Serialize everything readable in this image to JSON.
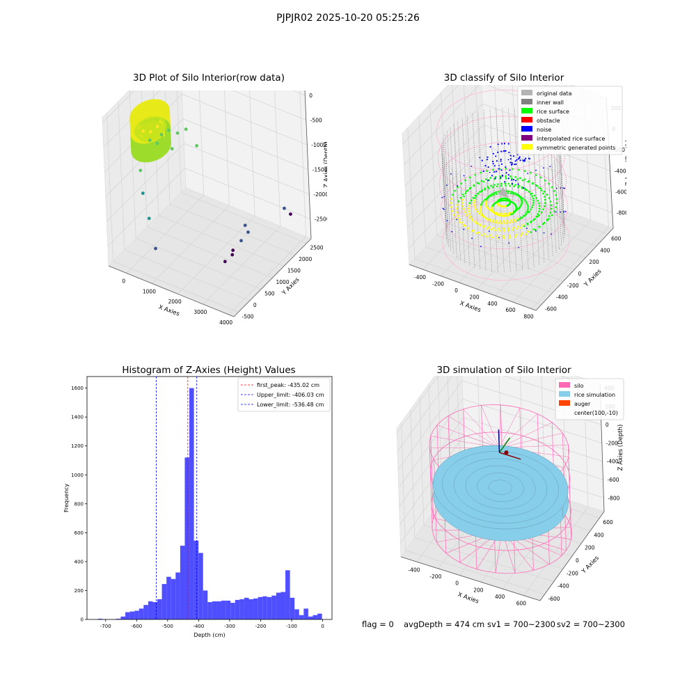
{
  "figure": {
    "suptitle": "PJPJR02 2025-10-20 05:25:26",
    "footer": {
      "flag": "flag = 0",
      "avg_depth": "avgDepth = 474 cm",
      "sv1": "sv1 = 700~2300",
      "sv2": "sv2 = 700~2300"
    }
  },
  "colors": {
    "pane": "#f2f2f2",
    "grid": "#d6d6d6",
    "original_data": "#b3b3b3",
    "inner_wall": "#808080",
    "rice_surface": "#00ff00",
    "obstacle": "#ff0000",
    "noise": "#0000ff",
    "interpolated_rice_surface": "#800080",
    "symmetric_generated_points": "#ffff00",
    "silo": "#ff69b4",
    "rice_simulation": "#87ceeb",
    "auger": "#ff4500",
    "hist_bar": "#4f4fff",
    "peak_line": "#ff0000",
    "limit_line": "#0000ff"
  },
  "chart_data": [
    {
      "type": "scatter",
      "title": "3D Plot of Silo Interior(row data)",
      "xlabel": "X Axies",
      "ylabel": "Y Axies",
      "zlabel": "Z Axies (Depth)",
      "x_ticks": [
        "0",
        "1000",
        "2000",
        "3000",
        "4000"
      ],
      "y_ticks": [
        "-500",
        "0",
        "500",
        "1000",
        "1500",
        "2000",
        "2500"
      ],
      "z_ticks": [
        "0",
        "-500",
        "-1000",
        "-1500",
        "-2000",
        "-2500"
      ],
      "xlim": [
        -700,
        4200
      ],
      "ylim": [
        -700,
        2700
      ],
      "zlim": [
        -2900,
        100
      ],
      "colormap": "viridis",
      "points": [
        {
          "x": 100,
          "y": 150,
          "z": -400
        },
        {
          "x": 250,
          "y": 300,
          "z": -450
        },
        {
          "x": 400,
          "y": 100,
          "z": -500
        },
        {
          "x": 500,
          "y": 500,
          "z": -550
        },
        {
          "x": 650,
          "y": 650,
          "z": -500
        },
        {
          "x": 300,
          "y": 550,
          "z": -450
        },
        {
          "x": 550,
          "y": 250,
          "z": -600
        },
        {
          "x": 1250,
          "y": 120,
          "z": -500
        },
        {
          "x": 900,
          "y": 750,
          "z": -550
        },
        {
          "x": 1100,
          "y": 900,
          "z": -500
        },
        {
          "x": 1500,
          "y": 900,
          "z": -750
        },
        {
          "x": 400,
          "y": -350,
          "z": -900
        },
        {
          "x": 600,
          "y": -500,
          "z": -1250
        },
        {
          "x": 900,
          "y": -600,
          "z": -1650
        },
        {
          "x": 1200,
          "y": -700,
          "z": -2150
        },
        {
          "x": 3200,
          "y": 1000,
          "z": -2050
        },
        {
          "x": 3400,
          "y": 900,
          "z": -2100
        },
        {
          "x": 3300,
          "y": 300,
          "z": -2300
        },
        {
          "x": 3300,
          "y": 700,
          "z": -2200
        },
        {
          "x": 3000,
          "y": 300,
          "z": -2500
        },
        {
          "x": 3050,
          "y": 600,
          "z": -2400
        },
        {
          "x": 3800,
          "y": 2300,
          "z": -2300
        },
        {
          "x": 3750,
          "y": 2100,
          "z": -2100
        }
      ]
    },
    {
      "type": "scatter",
      "title": "3D classify of Silo Interior",
      "xlabel": "X Axies",
      "ylabel": "Y Axies",
      "zlabel": "Z Axies (Depth)",
      "x_ticks": [
        "-400",
        "-200",
        "0",
        "200",
        "400",
        "600",
        "800"
      ],
      "y_ticks": [
        "-600",
        "-400",
        "-200",
        "0",
        "200",
        "400",
        "600"
      ],
      "z_ticks": [
        "200",
        "0",
        "-200",
        "-400",
        "-600",
        "-800"
      ],
      "xlim": [
        -550,
        850
      ],
      "ylim": [
        -700,
        700
      ],
      "zlim": [
        -950,
        300
      ],
      "silo_center": [
        100,
        -10
      ],
      "silo_radius": 600,
      "silo_top_z": 150,
      "silo_bottom_z": -900,
      "legend": [
        "original data",
        "inner wall",
        "rice surface",
        "obstacle",
        "noise",
        "interpolated rice surface",
        "symmetric generated points"
      ]
    },
    {
      "type": "bar",
      "title": "Histogram of Z-Axies (Height) Values",
      "xlabel": "Depth (cm)",
      "ylabel": "Frequency",
      "xlim": [
        -760,
        30
      ],
      "ylim": [
        0,
        1680
      ],
      "x_ticks": [
        -700,
        -600,
        -500,
        -400,
        -300,
        -200,
        -100,
        0
      ],
      "y_ticks": [
        0,
        200,
        400,
        600,
        800,
        1000,
        1200,
        1400,
        1600
      ],
      "bin_start": -725,
      "bin_width": 14.75,
      "values": [
        5,
        2,
        0,
        2,
        5,
        20,
        50,
        55,
        60,
        75,
        100,
        125,
        120,
        140,
        245,
        295,
        280,
        325,
        510,
        1120,
        1600,
        545,
        460,
        200,
        120,
        125,
        125,
        130,
        130,
        115,
        135,
        140,
        150,
        140,
        145,
        155,
        160,
        155,
        165,
        185,
        190,
        340,
        150,
        70,
        30,
        75,
        20,
        30,
        40
      ],
      "vlines": [
        {
          "x": -435.02,
          "style": "peak",
          "label": "first_peak: -435.02 cm"
        },
        {
          "x": -406.03,
          "style": "limit",
          "label": "Upper_limit: -406.03 cm"
        },
        {
          "x": -536.48,
          "style": "limit",
          "label": "Lower_limit: -536.48 cm"
        }
      ]
    },
    {
      "type": "scatter",
      "title": "3D simulation of Silo Interior",
      "xlabel": "X Axies",
      "ylabel": "Y Axies",
      "zlabel": "Z Axies (Depth)",
      "x_ticks": [
        "-400",
        "-200",
        "0",
        "200",
        "400",
        "600"
      ],
      "y_ticks": [
        "-600",
        "-400",
        "-200",
        "0",
        "200",
        "400",
        "600"
      ],
      "z_ticks": [
        "400",
        "200",
        "0",
        "-200",
        "-400",
        "-600",
        "-800"
      ],
      "xlim": [
        -550,
        750
      ],
      "ylim": [
        -700,
        700
      ],
      "zlim": [
        -950,
        450
      ],
      "legend": [
        "silo",
        "rice simulation",
        "auger",
        "center(100,-10)"
      ]
    }
  ]
}
